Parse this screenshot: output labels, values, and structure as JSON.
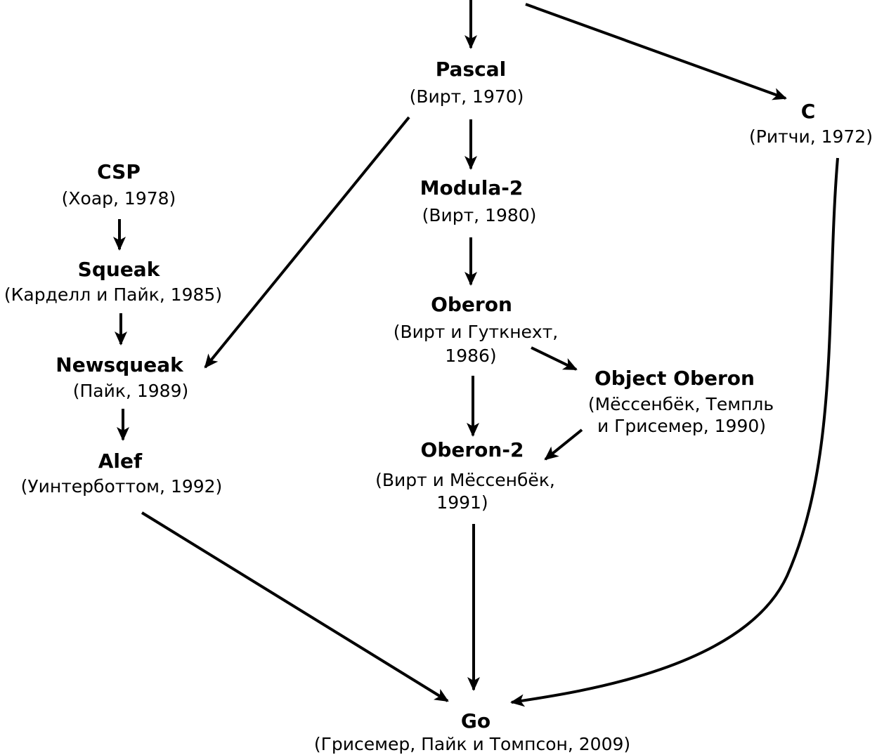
{
  "nodes": {
    "pascal": {
      "name": "Pascal",
      "sub1": "(Вирт, 1970)"
    },
    "c": {
      "name": "C",
      "sub1": "(Ритчи, 1972)"
    },
    "modula2": {
      "name": "Modula-2",
      "sub1": "(Вирт, 1980)"
    },
    "csp": {
      "name": "CSP",
      "sub1": "(Хоар, 1978)"
    },
    "squeak": {
      "name": "Squeak",
      "sub1": "(Карделл и Пайк, 1985)"
    },
    "oberon": {
      "name": "Oberon",
      "sub1": "(Вирт и Гуткнехт,",
      "sub2": "1986)"
    },
    "newsqueak": {
      "name": "Newsqueak",
      "sub1": "(Пайк, 1989)"
    },
    "object_oberon": {
      "name": "Object Oberon",
      "sub1": "(Мёссенбёк, Темпль",
      "sub2": "и Грисемер, 1990)"
    },
    "oberon2": {
      "name": "Oberon-2",
      "sub1": "(Вирт и Мёссенбёк,",
      "sub2": "1991)"
    },
    "alef": {
      "name": "Alef",
      "sub1": "(Уинтерботтом, 1992)"
    },
    "go": {
      "name": "Go",
      "sub1": "(Грисемер, Пайк и Томпсон, 2009)"
    }
  },
  "edges": [
    {
      "from": "top",
      "to": "pascal"
    },
    {
      "from": "top",
      "to": "c"
    },
    {
      "from": "pascal",
      "to": "modula2"
    },
    {
      "from": "pascal",
      "to": "newsqueak"
    },
    {
      "from": "csp",
      "to": "squeak"
    },
    {
      "from": "squeak",
      "to": "newsqueak"
    },
    {
      "from": "newsqueak",
      "to": "alef"
    },
    {
      "from": "modula2",
      "to": "oberon"
    },
    {
      "from": "oberon",
      "to": "object_oberon"
    },
    {
      "from": "oberon",
      "to": "oberon2"
    },
    {
      "from": "object_oberon",
      "to": "oberon2"
    },
    {
      "from": "alef",
      "to": "go"
    },
    {
      "from": "oberon2",
      "to": "go"
    },
    {
      "from": "c",
      "to": "go"
    }
  ]
}
